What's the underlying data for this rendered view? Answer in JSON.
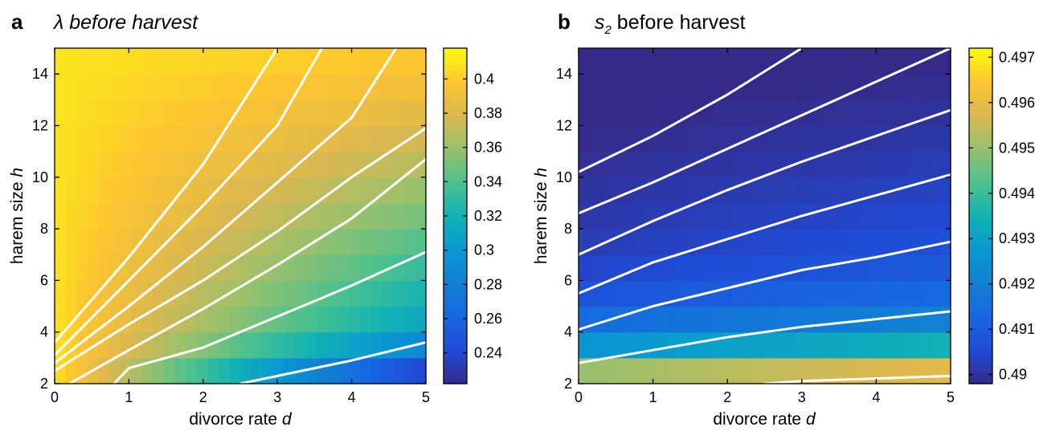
{
  "chart_data": [
    {
      "panel_letter": "a",
      "title": "λ before harvest",
      "type": "heatmap",
      "xlabel": "divorce rate ",
      "xlabel_italic": "d",
      "ylabel": "harem size ",
      "ylabel_italic": "h",
      "xlim": [
        0,
        5
      ],
      "ylim": [
        2,
        15
      ],
      "xticks": [
        0,
        1,
        2,
        3,
        4,
        5
      ],
      "yticks": [
        2,
        4,
        6,
        8,
        10,
        12,
        14
      ],
      "colormap": "parula",
      "clim": [
        0.222,
        0.418
      ],
      "colorbar_ticks": [
        0.24,
        0.26,
        0.28,
        0.3,
        0.32,
        0.34,
        0.36,
        0.38,
        0.4
      ],
      "grid": false,
      "contours": [
        [
          [
            0,
            3.6
          ],
          [
            1,
            6.9
          ],
          [
            2,
            10.5
          ],
          [
            3,
            15.0
          ]
        ],
        [
          [
            0,
            3.1
          ],
          [
            1,
            6.0
          ],
          [
            2,
            8.9
          ],
          [
            3,
            12.0
          ],
          [
            3.6,
            15.0
          ]
        ],
        [
          [
            0,
            2.8
          ],
          [
            1,
            5.0
          ],
          [
            2,
            7.3
          ],
          [
            3,
            9.8
          ],
          [
            4,
            12.3
          ],
          [
            4.6,
            15.0
          ]
        ],
        [
          [
            0,
            2.5
          ],
          [
            1,
            4.3
          ],
          [
            2,
            6.0
          ],
          [
            3,
            7.9
          ],
          [
            4,
            10.0
          ],
          [
            5,
            11.9
          ]
        ],
        [
          [
            0.2,
            2.0
          ],
          [
            1,
            3.3
          ],
          [
            2,
            4.9
          ],
          [
            3,
            6.6
          ],
          [
            4,
            8.4
          ],
          [
            5,
            10.7
          ]
        ],
        [
          [
            0.8,
            2.0
          ],
          [
            1,
            2.6
          ],
          [
            2,
            3.4
          ],
          [
            3,
            4.6
          ],
          [
            4,
            5.8
          ],
          [
            5,
            7.1
          ]
        ],
        [
          [
            2.5,
            2.0
          ],
          [
            3,
            2.3
          ],
          [
            4,
            2.9
          ],
          [
            5,
            3.6
          ]
        ]
      ]
    },
    {
      "panel_letter": "b",
      "title_main": "s",
      "title_sub": "2",
      "title_rest": " before harvest",
      "type": "heatmap",
      "xlabel": "divorce rate ",
      "xlabel_italic": "d",
      "ylabel": "harem size ",
      "ylabel_italic": "h",
      "xlim": [
        0,
        5
      ],
      "ylim": [
        2,
        15
      ],
      "xticks": [
        0,
        1,
        2,
        3,
        4,
        5
      ],
      "yticks": [
        2,
        4,
        6,
        8,
        10,
        12,
        14
      ],
      "colormap": "parula",
      "clim": [
        0.4898,
        0.4972
      ],
      "colorbar_ticks": [
        0.49,
        0.491,
        0.492,
        0.493,
        0.494,
        0.495,
        0.496,
        0.497
      ],
      "grid": false,
      "contours": [
        [
          [
            0,
            10.2
          ],
          [
            1,
            11.6
          ],
          [
            2,
            13.2
          ],
          [
            3,
            15.0
          ]
        ],
        [
          [
            0,
            8.6
          ],
          [
            1,
            9.8
          ],
          [
            2,
            11.1
          ],
          [
            3,
            12.4
          ],
          [
            4,
            13.7
          ],
          [
            5,
            15.0
          ]
        ],
        [
          [
            0,
            7.0
          ],
          [
            1,
            8.3
          ],
          [
            2,
            9.5
          ],
          [
            3,
            10.6
          ],
          [
            4,
            11.6
          ],
          [
            5,
            12.6
          ]
        ],
        [
          [
            0,
            5.5
          ],
          [
            1,
            6.7
          ],
          [
            2,
            7.6
          ],
          [
            3,
            8.5
          ],
          [
            4,
            9.3
          ],
          [
            5,
            10.1
          ]
        ],
        [
          [
            0,
            4.1
          ],
          [
            1,
            5.0
          ],
          [
            2,
            5.7
          ],
          [
            3,
            6.4
          ],
          [
            4,
            6.9
          ],
          [
            5,
            7.5
          ]
        ],
        [
          [
            0,
            2.8
          ],
          [
            1,
            3.3
          ],
          [
            2,
            3.8
          ],
          [
            3,
            4.2
          ],
          [
            4,
            4.5
          ],
          [
            5,
            4.8
          ]
        ],
        [
          [
            2.5,
            2.0
          ],
          [
            3,
            2.1
          ],
          [
            4,
            2.2
          ],
          [
            5,
            2.3
          ]
        ]
      ]
    }
  ]
}
